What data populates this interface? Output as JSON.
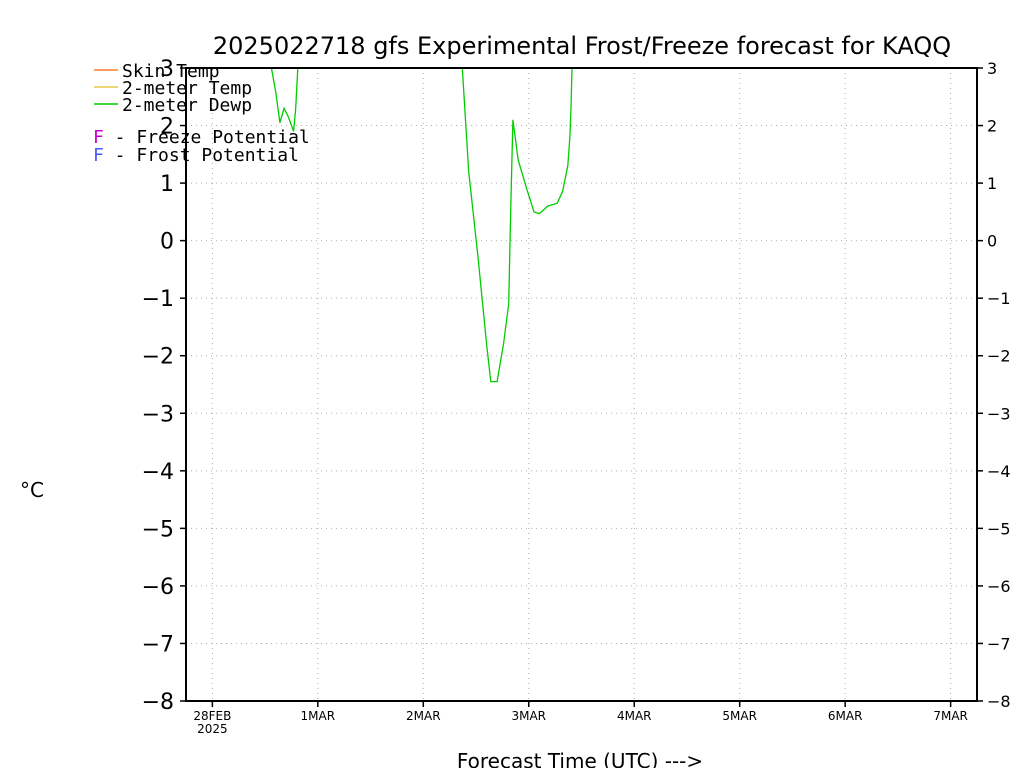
{
  "chart_data": {
    "type": "line",
    "title": "2025022718 gfs Experimental Frost/Freeze forecast for KAQQ",
    "xlabel": "Forecast Time (UTC) --->",
    "ylabel": "°C",
    "ylim": [
      -8,
      3
    ],
    "x_units": "days after 2025-02-28 00Z",
    "xlim": [
      -0.25,
      7.25
    ],
    "y_ticks": [
      3,
      2,
      1,
      0,
      -1,
      -2,
      -3,
      -4,
      -5,
      -6,
      -7,
      -8
    ],
    "y_tick_labels": [
      "3",
      "2",
      "1",
      "0",
      "−1",
      "−2",
      "−3",
      "−4",
      "−5",
      "−6",
      "−7",
      "−8"
    ],
    "x_ticks": [
      0,
      1,
      2,
      3,
      4,
      5,
      6,
      7
    ],
    "x_tick_labels": [
      "28FEB",
      "1MAR",
      "2MAR",
      "3MAR",
      "4MAR",
      "5MAR",
      "6MAR",
      "7MAR"
    ],
    "x_tick_sublabel": "2025",
    "grid": true,
    "legend": [
      {
        "label": "Skin Temp",
        "color": "#ff7f27"
      },
      {
        "label": "2-meter Temp",
        "color": "#e6c84a"
      },
      {
        "label": "2-meter Dewp",
        "color": "#00cc00"
      }
    ],
    "potential_legend": [
      {
        "symbol": "F",
        "label": " - Freeze Potential",
        "color": "#cc00cc"
      },
      {
        "symbol": "F",
        "label": " - Frost Potential",
        "color": "#4a5aff"
      }
    ],
    "series": [
      {
        "name": "2-meter Dewp",
        "color": "#00cc00",
        "segments": [
          [
            [
              0.56,
              3.0
            ],
            [
              0.6,
              2.6
            ],
            [
              0.64,
              2.05
            ],
            [
              0.68,
              2.3
            ],
            [
              0.72,
              2.15
            ],
            [
              0.75,
              2.0
            ],
            [
              0.77,
              1.9
            ],
            [
              0.79,
              2.3
            ],
            [
              0.81,
              3.0
            ]
          ],
          [
            [
              2.37,
              3.0
            ],
            [
              2.43,
              1.2
            ],
            [
              2.52,
              -0.3
            ],
            [
              2.6,
              -1.8
            ],
            [
              2.64,
              -2.45
            ],
            [
              2.7,
              -2.45
            ],
            [
              2.76,
              -1.8
            ],
            [
              2.81,
              -1.1
            ],
            [
              2.83,
              0.6
            ],
            [
              2.85,
              2.1
            ],
            [
              2.9,
              1.4
            ],
            [
              2.98,
              0.9
            ],
            [
              3.05,
              0.5
            ],
            [
              3.1,
              0.47
            ],
            [
              3.18,
              0.6
            ],
            [
              3.27,
              0.65
            ],
            [
              3.32,
              0.85
            ],
            [
              3.37,
              1.3
            ],
            [
              3.39,
              1.8
            ],
            [
              3.4,
              2.3
            ],
            [
              3.41,
              3.0
            ]
          ]
        ]
      }
    ]
  }
}
